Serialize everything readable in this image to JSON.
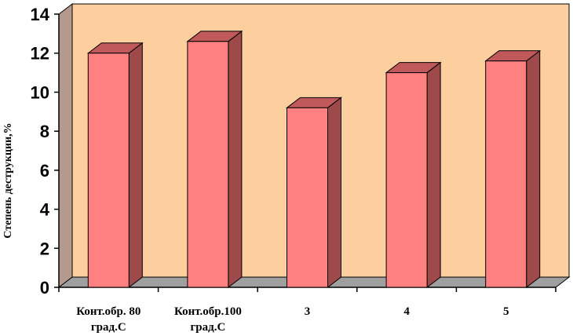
{
  "chart_data": {
    "type": "bar",
    "categories": [
      [
        "Конт.обр. 80",
        "град.С"
      ],
      [
        "Конт.обр.100",
        "град.С"
      ],
      [
        "3"
      ],
      [
        "4"
      ],
      [
        "5"
      ]
    ],
    "values": [
      12.0,
      12.6,
      9.2,
      11.0,
      11.6
    ],
    "title": "",
    "xlabel": "",
    "ylabel": "Степень деструкции,%",
    "ylim": [
      0,
      14
    ],
    "yticks": [
      0,
      2,
      4,
      6,
      8,
      10,
      12,
      14
    ],
    "grid": false,
    "legend": "none",
    "colors": {
      "plot_background": "#fdcf9f",
      "wall_side": "#b39a8c",
      "floor": "#9f9f9f",
      "bar_front": "#ff8080",
      "bar_top": "#c05a5a",
      "bar_side": "#9e4a4a"
    }
  }
}
